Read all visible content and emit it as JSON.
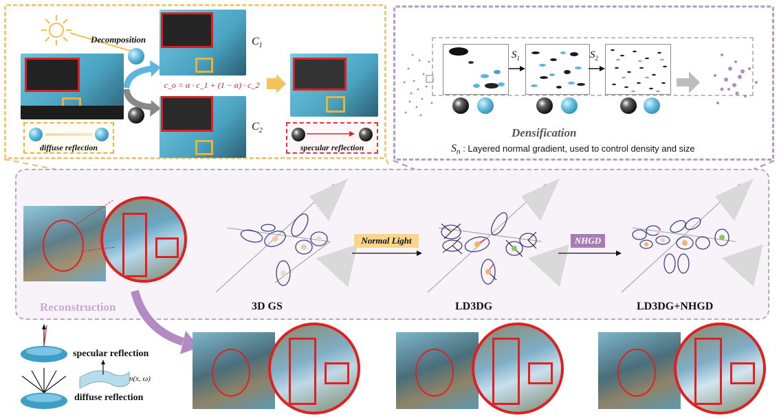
{
  "decomposition": {
    "label": "Decomposition",
    "c1": "C",
    "c1_sub": "1",
    "c2": "C",
    "c2_sub": "2",
    "equation": "c_o = α · c_1 + (1 − α) · c_2",
    "diffuse_label": "diffuse reflection",
    "specular_label": "specular reflection"
  },
  "densification": {
    "title": "Densification",
    "s1": "S",
    "s1_sub": "1",
    "s2": "S",
    "s2_sub": "2",
    "sn": "S",
    "sn_sub": "n",
    "caption": ": Layered normal gradient, used to control density and size"
  },
  "reconstruction": {
    "label": "Reconstruction",
    "method_3dgs": "3D GS",
    "method_ld3dg": "LD3DG",
    "method_full": "LD3DG+NHGD",
    "tag_normal_light": "Normal Light",
    "tag_nhgd": "NHGD"
  },
  "legend": {
    "specular": "specular reflection",
    "diffuse": "diffuse reflection",
    "normal": "n(x, ω)"
  },
  "colors": {
    "yellow_dash": "#f1c776",
    "purple_dash": "#b99ac6",
    "red_box": "#e02020",
    "gold_box": "#e8b53a",
    "sky_blue": "#5bb7dd"
  }
}
